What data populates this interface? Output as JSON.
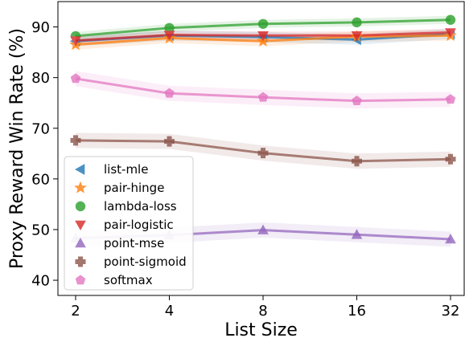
{
  "chart_data": {
    "type": "line",
    "xlabel": "List Size",
    "ylabel": "Proxy Reward Win Rate (%)",
    "x": [
      2,
      4,
      8,
      16,
      32
    ],
    "x_tick_labels": [
      "2",
      "4",
      "8",
      "16",
      "32"
    ],
    "x_scale": "log2",
    "ylim": [
      37,
      95
    ],
    "y_ticks": [
      40,
      50,
      60,
      70,
      80,
      90
    ],
    "y_tick_labels": [
      "40",
      "50",
      "60",
      "70",
      "80",
      "90"
    ],
    "grid": false,
    "legend_position": "lower-left",
    "series": [
      {
        "name": "list-mle",
        "marker": "triangle-left",
        "color": "#1f77b4",
        "values": [
          87.2,
          88.3,
          88.0,
          87.5,
          88.6
        ],
        "band": 1.0
      },
      {
        "name": "pair-hinge",
        "marker": "star",
        "color": "#ff7f0e",
        "values": [
          86.5,
          87.8,
          87.2,
          88.1,
          88.3
        ],
        "band": 1.0
      },
      {
        "name": "lambda-loss",
        "marker": "circle",
        "color": "#2ca02c",
        "values": [
          88.2,
          89.8,
          90.6,
          90.9,
          91.4
        ],
        "band": 0.8
      },
      {
        "name": "pair-logistic",
        "marker": "triangle-down",
        "color": "#d62728",
        "values": [
          87.3,
          88.4,
          88.3,
          88.3,
          88.9
        ],
        "band": 0.8
      },
      {
        "name": "point-mse",
        "marker": "triangle-up",
        "color": "#9467bd",
        "values": [
          48.3,
          48.9,
          49.9,
          49.0,
          48.1
        ],
        "band": 1.5
      },
      {
        "name": "point-sigmoid",
        "marker": "plus",
        "color": "#8c564b",
        "values": [
          67.6,
          67.4,
          65.1,
          63.5,
          63.9
        ],
        "band": 1.5
      },
      {
        "name": "softmax",
        "marker": "pentagon",
        "color": "#e377c2",
        "values": [
          79.8,
          76.9,
          76.1,
          75.4,
          75.7
        ],
        "band": 1.5
      }
    ]
  }
}
